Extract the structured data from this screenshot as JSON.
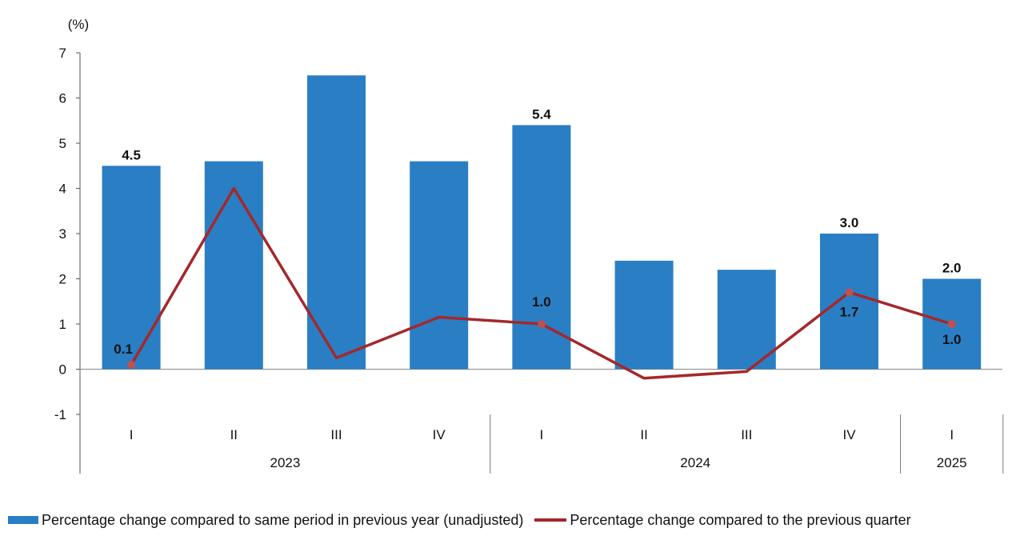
{
  "chart_data": {
    "type": "bar",
    "unit_label": "(%)",
    "categories": [
      "I",
      "II",
      "III",
      "IV",
      "I",
      "II",
      "III",
      "IV",
      "I"
    ],
    "groups": [
      {
        "label": "2023",
        "count": 4
      },
      {
        "label": "2024",
        "count": 4
      },
      {
        "label": "2025",
        "count": 1
      }
    ],
    "ylim": [
      -1,
      7
    ],
    "yticks": [
      -1,
      0,
      1,
      2,
      3,
      4,
      5,
      6,
      7
    ],
    "series": [
      {
        "name": "Percentage change compared to same period in previous year (unadjusted)",
        "kind": "bar",
        "color": "#2a7ec4",
        "values": [
          4.5,
          4.6,
          6.5,
          4.6,
          5.4,
          2.4,
          2.2,
          3.0,
          2.0
        ],
        "labels": [
          "4.5",
          "",
          "",
          "",
          "5.4",
          "",
          "",
          "3.0",
          "2.0"
        ]
      },
      {
        "name": "Percentage change compared to the previous quarter",
        "kind": "line",
        "color": "#a4282b",
        "values": [
          0.1,
          4.0,
          0.25,
          1.15,
          1.0,
          -0.2,
          -0.05,
          1.7,
          1.0
        ],
        "labels": [
          "0.1",
          "",
          "",
          "",
          "1.0",
          "",
          "",
          "1.7",
          "1.0"
        ],
        "markers": [
          true,
          false,
          false,
          false,
          true,
          false,
          false,
          true,
          true
        ]
      }
    ],
    "grid": false,
    "legend_position": "bottom"
  }
}
